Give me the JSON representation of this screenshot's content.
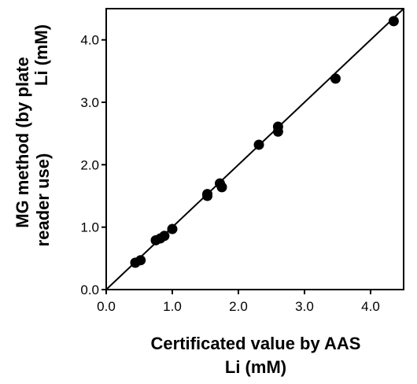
{
  "chart_data": {
    "type": "scatter",
    "xlabel": [
      "Certificated value by AAS",
      "Li (mM)"
    ],
    "ylabel": [
      "MG method  (by  plate",
      "Li (mM)",
      "reader  use)"
    ],
    "xlim": [
      0,
      4.5
    ],
    "ylim": [
      0,
      4.5
    ],
    "x_ticks": [
      0.0,
      1.0,
      2.0,
      3.0,
      4.0
    ],
    "y_ticks": [
      0.0,
      1.0,
      2.0,
      3.0,
      4.0
    ],
    "x_tick_labels": [
      "0.0",
      "1.0",
      "2.0",
      "3.0",
      "4.0"
    ],
    "y_tick_labels": [
      "0.0",
      "1.0",
      "2.0",
      "3.0",
      "4.0"
    ],
    "grid": false,
    "legend": "none",
    "marker_color": "#000000",
    "line_color": "#000000",
    "trendline": {
      "intercept": 0.0,
      "slope": 1.0,
      "x": [
        0.0,
        4.5
      ]
    },
    "points": [
      {
        "x": 0.44,
        "y": 0.43
      },
      {
        "x": 0.52,
        "y": 0.47
      },
      {
        "x": 0.75,
        "y": 0.79
      },
      {
        "x": 0.82,
        "y": 0.82
      },
      {
        "x": 0.88,
        "y": 0.86
      },
      {
        "x": 1.0,
        "y": 0.97
      },
      {
        "x": 1.53,
        "y": 1.5
      },
      {
        "x": 1.53,
        "y": 1.53
      },
      {
        "x": 1.72,
        "y": 1.7
      },
      {
        "x": 1.75,
        "y": 1.64
      },
      {
        "x": 2.31,
        "y": 2.32
      },
      {
        "x": 2.6,
        "y": 2.53
      },
      {
        "x": 2.6,
        "y": 2.61
      },
      {
        "x": 3.47,
        "y": 3.38
      },
      {
        "x": 4.35,
        "y": 4.3
      }
    ]
  }
}
